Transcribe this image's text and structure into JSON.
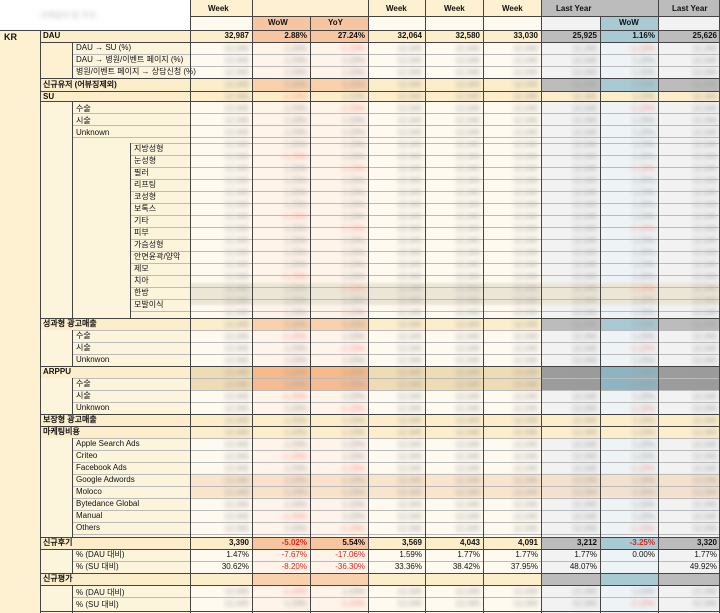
{
  "header": {
    "top_blurred": "선택일자 및 주차",
    "cols": [
      {
        "label": "Week"
      },
      {
        "label": "WoW"
      },
      {
        "label": "YoY"
      },
      {
        "label": "Week"
      },
      {
        "label": "Week"
      },
      {
        "label": "Week"
      },
      {
        "label": "Last Year"
      },
      {
        "label": "WoW"
      },
      {
        "label": "Last Year"
      }
    ]
  },
  "region": "KR",
  "sections": {
    "dau": {
      "label": "DAU",
      "values": [
        "32,987",
        "2.88%",
        "27.24%",
        "32,064",
        "32,580",
        "33,030",
        "25,925",
        "1.16%",
        "25,626"
      ]
    },
    "dau_sub": [
      "DAU → SU (%)",
      "DAU → 병원/이벤트 페이지 (%)",
      "병원/이벤트 페이지 → 상담신청 (%)"
    ],
    "new_user": {
      "label": "신규유저 (어뷰징제외)"
    },
    "su": {
      "label": "SU",
      "sub": [
        "수술",
        "시술",
        "Unknown"
      ],
      "detail": [
        "지방성형",
        "눈성형",
        "필러",
        "리프팅",
        "코성형",
        "보톡스",
        "기타",
        "피부",
        "가슴성형",
        "안면윤곽/양악",
        "제모",
        "치아",
        "한방",
        "모발이식"
      ]
    },
    "ad_revenue": {
      "label": "성과형 광고매출",
      "sub": [
        "수술",
        "시술",
        "Unknwon"
      ]
    },
    "arppu": {
      "label": "ARPPU",
      "sub": [
        "수술",
        "시술",
        "Unknwon"
      ]
    },
    "guaranteed": {
      "label": "보장형 광고매출"
    },
    "marketing": {
      "label": "마케팅비용",
      "sub": [
        "Apple Search Ads",
        "Criteo",
        "Facebook Ads",
        "Google Adwords",
        "Moloco",
        "Bytedance Global",
        "Manual",
        "Others"
      ]
    },
    "reviews": {
      "label": "신규후기",
      "values": [
        "3,390",
        "-5.02%",
        "5.54%",
        "3,569",
        "4,043",
        "4,091",
        "3,212",
        "-3.25%",
        "3,320"
      ],
      "rows": [
        {
          "label": "% (DAU 대비)",
          "values": [
            "1.47%",
            "-7.67%",
            "-17.06%",
            "1.59%",
            "1.77%",
            "1.77%",
            "1.77%",
            "0.00%",
            "1.77%"
          ]
        },
        {
          "label": "% (SU 대비)",
          "values": [
            "30.62%",
            "-8.20%",
            "-36.30%",
            "33.36%",
            "38.42%",
            "37.95%",
            "48.07%",
            "",
            "49.92%"
          ]
        }
      ]
    },
    "ratings": {
      "label": "신규평가",
      "sub": [
        "% (DAU 대비)",
        "% (SU 대비)"
      ]
    }
  },
  "blurred_cells": {
    "sample": "12,345",
    "pct": "1.23%",
    "neg": "-1.23%"
  },
  "colors": {
    "cream": "#fdf1d2",
    "orange": "#f7c59f",
    "orange_dark": "#f3a876",
    "gray": "#bcbcbc",
    "gray_dark": "#9c9c9c",
    "teal": "#a9c9d3"
  }
}
